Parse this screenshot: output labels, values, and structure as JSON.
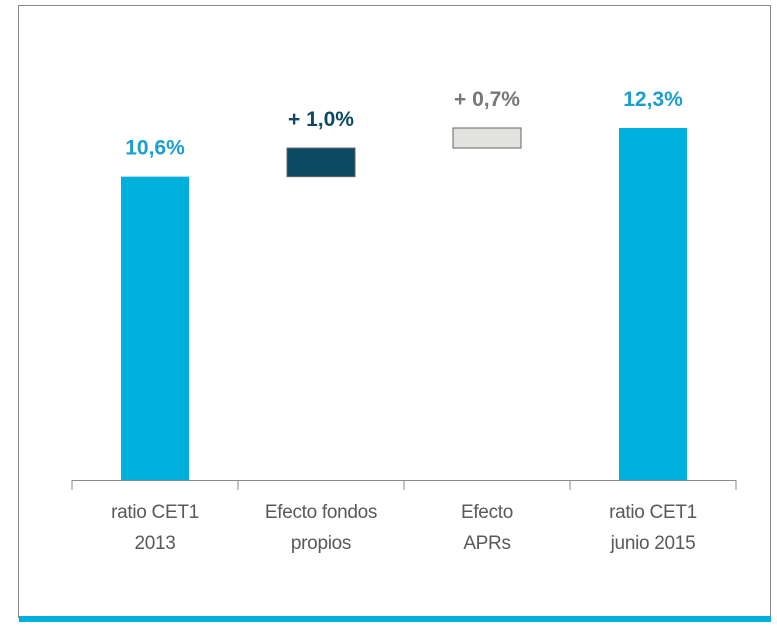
{
  "chart_data": {
    "type": "waterfall",
    "categories": [
      "ratio CET1 2013",
      "Efecto fondos propios",
      "Efecto APRs",
      "ratio CET1 junio 2015"
    ],
    "values": [
      10.6,
      1.0,
      0.7,
      12.3
    ],
    "value_labels": [
      "10,6%",
      "+ 1,0%",
      "+ 0,7%",
      "12,3%"
    ],
    "kinds": [
      "total",
      "increase",
      "increase",
      "total"
    ],
    "colors": [
      "#00b0dc",
      "#0b4a62",
      "#e2e2de",
      "#00b0dc"
    ],
    "label_colors": [
      "#1a9fd0",
      "#0b4a62",
      "#777777",
      "#1a9fd0"
    ]
  }
}
